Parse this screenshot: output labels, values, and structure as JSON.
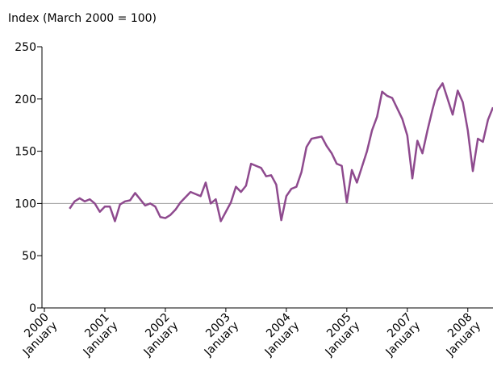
{
  "chart_data": {
    "type": "line",
    "y_label": "Index (March 2000 = 100)",
    "categories": [
      "2000 January",
      null,
      null,
      null,
      null,
      null,
      null,
      null,
      null,
      null,
      null,
      null,
      "2001 January",
      null,
      null,
      null,
      null,
      null,
      null,
      null,
      null,
      null,
      null,
      null,
      "2002 January",
      null,
      null,
      null,
      null,
      null,
      null,
      null,
      null,
      null,
      null,
      null,
      "2003 January",
      null,
      null,
      null,
      null,
      null,
      null,
      null,
      null,
      null,
      null,
      null,
      "2004 January",
      null,
      null,
      null,
      null,
      null,
      null,
      null,
      null,
      null,
      null,
      null,
      "2005 January",
      null,
      null,
      null,
      null,
      null,
      null,
      null,
      null,
      null,
      null,
      null,
      "2007 January",
      null,
      null,
      null,
      null,
      null,
      null,
      null,
      null,
      null,
      null,
      null,
      "2008 January",
      null,
      null,
      null,
      null,
      null
    ],
    "values": [
      null,
      null,
      null,
      null,
      null,
      95,
      102,
      105,
      102,
      104,
      100,
      92,
      97,
      97,
      83,
      99,
      102,
      103,
      110,
      104,
      98,
      100,
      97,
      87,
      86,
      89,
      94,
      101,
      106,
      111,
      109,
      107,
      120,
      100,
      104,
      83,
      92,
      101,
      116,
      111,
      117,
      138,
      136,
      134,
      126,
      127,
      118,
      84,
      107,
      114,
      116,
      130,
      154,
      162,
      163,
      164,
      155,
      148,
      138,
      136,
      101,
      132,
      120,
      135,
      150,
      170,
      183,
      207,
      203,
      201,
      191,
      181,
      165,
      124,
      160,
      148,
      170,
      190,
      208,
      215,
      200,
      185,
      208,
      197,
      170,
      131,
      162,
      159,
      180,
      192
    ],
    "color": "#8e4a8e",
    "ylim": [
      0,
      250
    ],
    "yticks": [
      0,
      50,
      100,
      150,
      200,
      250
    ],
    "reference_line": 100
  }
}
